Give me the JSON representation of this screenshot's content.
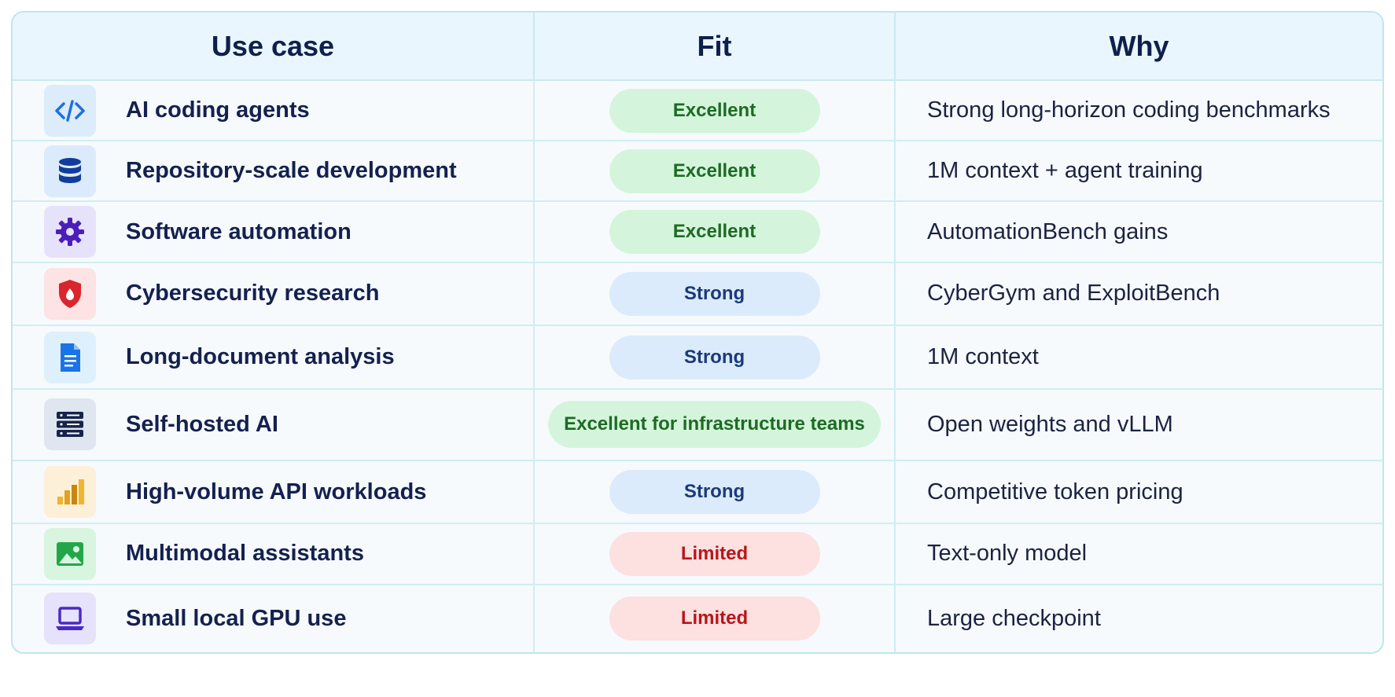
{
  "headers": {
    "use_case": "Use case",
    "fit": "Fit",
    "why": "Why"
  },
  "rows": [
    {
      "icon": "code-icon",
      "icon_bg": "#dcecfb",
      "icon_color": "#1f6fe0",
      "label": "AI coding agents",
      "fit": "Excellent",
      "fit_level": "excellent",
      "why": "Strong long-horizon coding benchmarks"
    },
    {
      "icon": "database-icon",
      "icon_bg": "#dcebfb",
      "icon_color": "#123c9c",
      "label": "Repository-scale development",
      "fit": "Excellent",
      "fit_level": "excellent",
      "why": "1M context + agent training"
    },
    {
      "icon": "gear-icon",
      "icon_bg": "#e7e2fb",
      "icon_color": "#4a1fb8",
      "label": "Software automation",
      "fit": "Excellent",
      "fit_level": "excellent",
      "why": "AutomationBench gains"
    },
    {
      "icon": "shield-icon",
      "icon_bg": "#fde3e3",
      "icon_color": "#d9262c",
      "label": "Cybersecurity research",
      "fit": "Strong",
      "fit_level": "strong",
      "why": "CyberGym and ExploitBench"
    },
    {
      "icon": "document-icon",
      "icon_bg": "#dff0fd",
      "icon_color": "#1a73e8",
      "label": "Long-document analysis",
      "fit": "Strong",
      "fit_level": "strong",
      "why": "1M context"
    },
    {
      "icon": "server-icon",
      "icon_bg": "#dfe6f0",
      "icon_color": "#16244a",
      "label": "Self-hosted AI",
      "fit": "Excellent for infrastructure teams",
      "fit_level": "excellent",
      "why": "Open weights and vLLM"
    },
    {
      "icon": "bar-chart-icon",
      "icon_bg": "#fdf0d8",
      "icon_color": "#e3a21a",
      "label": "High-volume API workloads",
      "fit": "Strong",
      "fit_level": "strong",
      "why": "Competitive token pricing"
    },
    {
      "icon": "image-icon",
      "icon_bg": "#d8f5df",
      "icon_color": "#23a64a",
      "label": "Multimodal assistants",
      "fit": "Limited",
      "fit_level": "limited",
      "why": "Text-only model"
    },
    {
      "icon": "laptop-icon",
      "icon_bg": "#e6e2fb",
      "icon_color": "#4a2ac4",
      "label": "Small local GPU use",
      "fit": "Limited",
      "fit_level": "limited",
      "why": "Large checkpoint"
    }
  ]
}
